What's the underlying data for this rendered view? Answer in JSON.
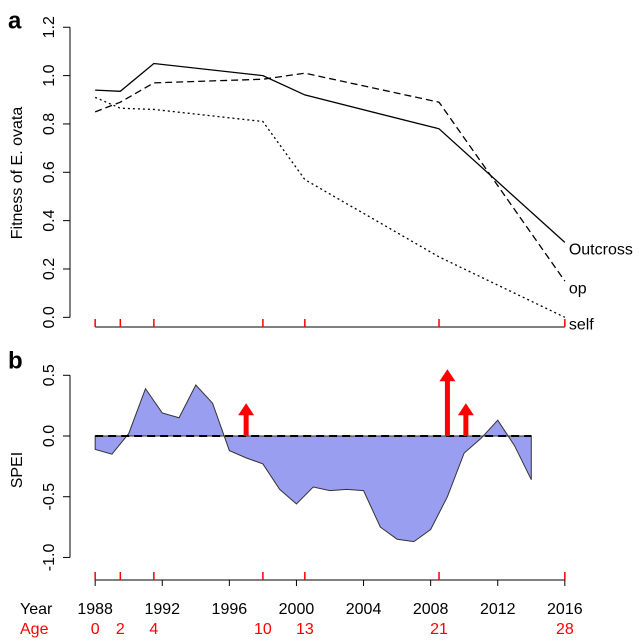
{
  "chart_data": [
    {
      "type": "line",
      "panel_label": "a",
      "y_label": "Fitness of E. ovata",
      "x": [
        1988,
        1989.5,
        1991.5,
        1998,
        2000.5,
        2008.5,
        2016
      ],
      "series": [
        {
          "name": "Outcross",
          "color": "#000000",
          "dash": "solid",
          "values": [
            0.94,
            0.935,
            1.05,
            1.0,
            0.92,
            0.78,
            0.31
          ]
        },
        {
          "name": "op",
          "color": "#000000",
          "dash": "dashed",
          "values": [
            0.85,
            0.89,
            0.97,
            0.985,
            1.01,
            0.89,
            0.15
          ]
        },
        {
          "name": "self",
          "color": "#000000",
          "dash": "dotted",
          "values": [
            0.91,
            0.865,
            0.86,
            0.81,
            0.57,
            0.25,
            0.0
          ]
        }
      ],
      "xlim": [
        1986.5,
        2017.5
      ],
      "ylim": [
        -0.04,
        1.23
      ],
      "yticks": [
        {
          "value": 0,
          "label": "0.0"
        },
        0.2,
        0.4,
        0.6,
        0.8,
        {
          "value": 1,
          "label": "1.0"
        },
        1.2
      ]
    },
    {
      "type": "area",
      "panel_label": "b",
      "y_label": "SPEI",
      "x_label": "Year",
      "color": "#9a9ef0",
      "x": [
        1988,
        1989,
        1990,
        1991,
        1992,
        1993,
        1994,
        1995,
        1996,
        1997,
        1998,
        1999,
        2000,
        2001,
        2002,
        2003,
        2004,
        2005,
        2006,
        2007,
        2008,
        2009,
        2010,
        2011,
        2012,
        2013,
        2014
      ],
      "values": [
        -0.11,
        -0.15,
        0.02,
        0.39,
        0.19,
        0.15,
        0.42,
        0.27,
        -0.12,
        -0.18,
        -0.23,
        -0.44,
        -0.56,
        -0.42,
        -0.45,
        -0.44,
        -0.45,
        -0.75,
        -0.85,
        -0.87,
        -0.77,
        -0.5,
        -0.14,
        -0.02,
        0.13,
        -0.08,
        -0.36
      ],
      "arrows": {
        "color": "#ff0000",
        "x": [
          1997,
          2009,
          2010.1
        ],
        "values": [
          0.27,
          0.55,
          0.27
        ]
      },
      "xlim": [
        1986.5,
        2017.5
      ],
      "ylim": [
        -1.12,
        0.56
      ],
      "xticks": [
        1988,
        1992,
        1996,
        2000,
        2004,
        2008,
        2012,
        2016
      ],
      "yticks": [
        0.5,
        {
          "value": 0,
          "label": "0.0"
        },
        -0.5,
        {
          "value": -1,
          "label": "-1.0"
        }
      ]
    }
  ],
  "ages": {
    "label": "Age",
    "color": "#ff0000",
    "x": [
      1988,
      1989.5,
      1991.5,
      1998,
      2000.5,
      2008.5,
      2016
    ],
    "values": [
      0,
      2,
      4,
      10,
      13,
      21,
      28
    ]
  }
}
